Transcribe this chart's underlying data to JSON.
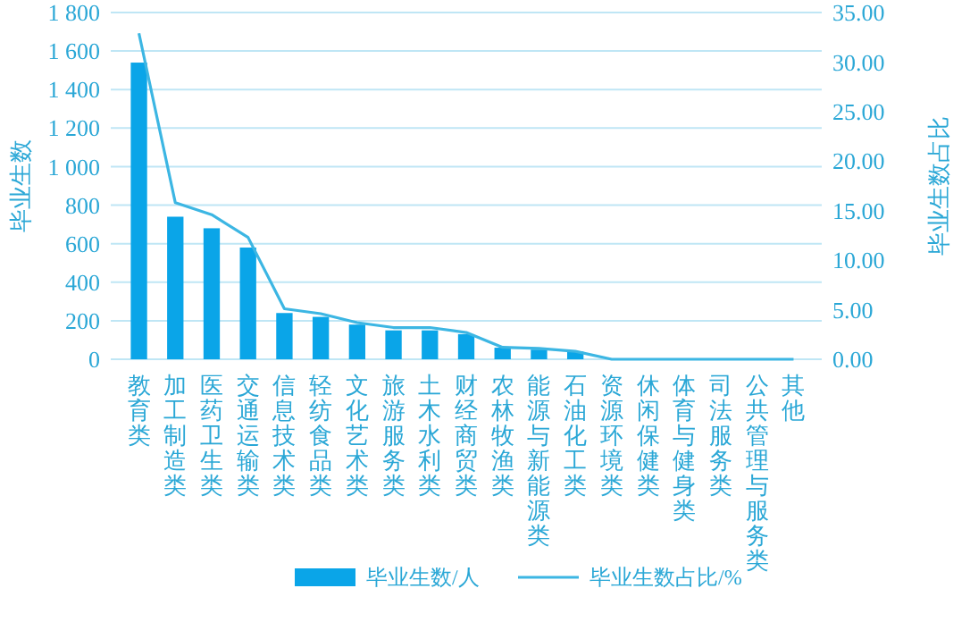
{
  "chart_data": {
    "type": "bar",
    "ylabel": "毕业生数",
    "y2label": "毕业生数占比",
    "categories": [
      "教育类",
      "加工制造类",
      "医药卫生类",
      "交通运输类",
      "信息技术类",
      "轻纺食品类",
      "文化艺术类",
      "旅游服务类",
      "土木水利类",
      "财经商贸类",
      "农林牧渔类",
      "能源与新能源类",
      "石油化工类",
      "资源环境类",
      "休闲保健类",
      "体育与健身类",
      "司法服务类",
      "公共管理与服务类",
      "其他"
    ],
    "series": [
      {
        "name": "毕业生数/人",
        "color": "#0aa5e8",
        "values": [
          1540,
          740,
          680,
          580,
          240,
          220,
          180,
          150,
          150,
          130,
          60,
          50,
          40,
          0,
          0,
          0,
          0,
          0,
          0
        ]
      },
      {
        "name": "毕业生数占比/%",
        "type": "line",
        "axis": "y2",
        "color": "#3cb6e3",
        "values": [
          32.9,
          15.8,
          14.6,
          12.3,
          5.1,
          4.6,
          3.7,
          3.2,
          3.2,
          2.7,
          1.2,
          1.1,
          0.8,
          0,
          0,
          0,
          0,
          0,
          0
        ]
      }
    ],
    "ylim": [
      0,
      1800
    ],
    "yticks": [
      0,
      200,
      400,
      600,
      800,
      {
        "value": 1000,
        "label": "1 000"
      },
      {
        "value": 1200,
        "label": "1 200"
      },
      {
        "value": 1400,
        "label": "1 400"
      },
      {
        "value": 1600,
        "label": "1 600"
      },
      {
        "value": 1800,
        "label": "1 800"
      }
    ],
    "y2lim": [
      0,
      35
    ],
    "y2ticks": [
      {
        "value": 0,
        "label": "0.00"
      },
      {
        "value": 5,
        "label": "5.00"
      },
      {
        "value": 10,
        "label": "10.00"
      },
      {
        "value": 15,
        "label": "15.00"
      },
      {
        "value": 20,
        "label": "20.00"
      },
      {
        "value": 25,
        "label": "25.00"
      },
      {
        "value": 30,
        "label": "30.00"
      },
      {
        "value": 35,
        "label": "35.00"
      }
    ],
    "grid": "y",
    "legend": "bottom",
    "marker": "none",
    "line_style": "solid"
  }
}
